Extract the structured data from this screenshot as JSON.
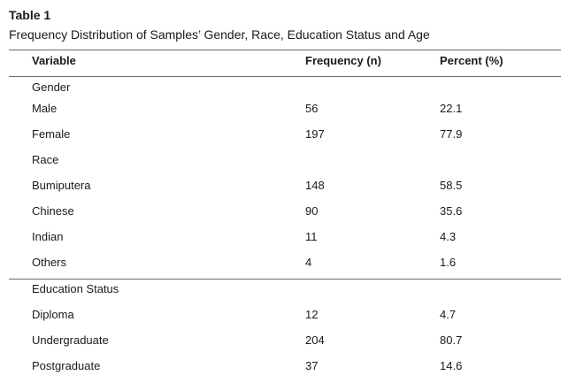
{
  "table": {
    "label": "Table 1",
    "title": "Frequency Distribution of Samples’ Gender, Race, Education Status and Age",
    "headers": {
      "variable": "Variable",
      "frequency": "Frequency (n)",
      "percent": "Percent (%)"
    },
    "rows": [
      {
        "variable": "Gender",
        "frequency": "",
        "percent": ""
      },
      {
        "variable": "Male",
        "frequency": "56",
        "percent": "22.1"
      },
      {
        "variable": "Female",
        "frequency": "197",
        "percent": "77.9"
      },
      {
        "variable": "Race",
        "frequency": "",
        "percent": ""
      },
      {
        "variable": "Bumiputera",
        "frequency": "148",
        "percent": "58.5"
      },
      {
        "variable": "Chinese",
        "frequency": "90",
        "percent": "35.6"
      },
      {
        "variable": "Indian",
        "frequency": "11",
        "percent": "4.3"
      },
      {
        "variable": "Others",
        "frequency": "4",
        "percent": "1.6"
      },
      {
        "variable": "Education Status",
        "frequency": "",
        "percent": ""
      },
      {
        "variable": "Diploma",
        "frequency": "12",
        "percent": "4.7"
      },
      {
        "variable": "Undergraduate",
        "frequency": "204",
        "percent": "80.7"
      },
      {
        "variable": "Postgraduate",
        "frequency": "37",
        "percent": "14.6"
      }
    ]
  }
}
